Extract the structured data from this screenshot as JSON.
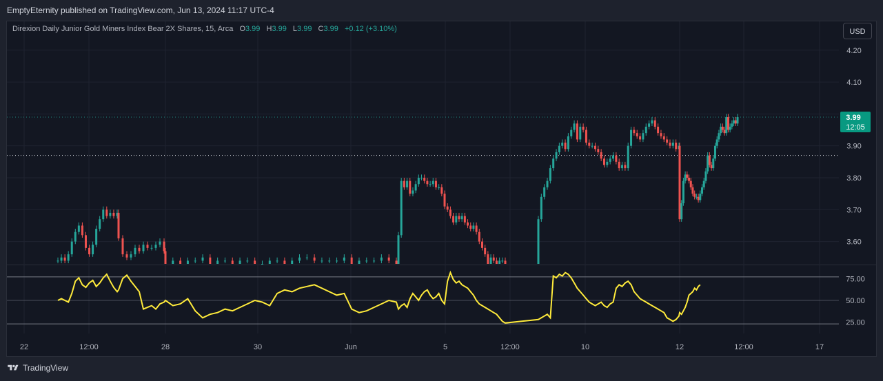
{
  "header": {
    "publisher_line": "EmptyEternity published on TradingView.com, Jun 13, 2024 11:17 UTC-4"
  },
  "legend": {
    "title": "Direxion Daily Junior Gold Miners Index Bear 2X Shares, 15, Arca",
    "open_label": "O",
    "open": "3.99",
    "high_label": "H",
    "high": "3.99",
    "low_label": "L",
    "low": "3.99",
    "close_label": "C",
    "close": "3.99",
    "change": "+0.12 (+3.10%)"
  },
  "currency_button": "USD",
  "price_badge": {
    "price": "3.99",
    "countdown": "12:05"
  },
  "footer": {
    "brand": "TradingView"
  },
  "colors": {
    "up": "#26a69a",
    "down": "#ef5350",
    "rsi": "#ffeb3b",
    "background": "#131722",
    "badge": "#089981"
  },
  "chart_data": [
    {
      "type": "candlestick",
      "title": "Direxion Daily Junior Gold Miners Index Bear 2X Shares, 15, Arca",
      "ylim": [
        3.53,
        4.26
      ],
      "y_ticks": [
        "4.20",
        "4.10",
        "4.00",
        "3.90",
        "3.80",
        "3.70",
        "3.60"
      ],
      "x_ticks": [
        "22",
        "12:00",
        "28",
        "30",
        "Jun",
        "5",
        "12:00",
        "10",
        "12",
        "12:00",
        "17"
      ],
      "last_price": 3.99,
      "reference_level": 3.87,
      "series": [
        {
          "name": "",
          "x": [
            0,
            1,
            2,
            3,
            4,
            5,
            6,
            7,
            8,
            9,
            10,
            11,
            12,
            13,
            14,
            15,
            16,
            17,
            18,
            19,
            20,
            21,
            22,
            23,
            24,
            25,
            26,
            27,
            28,
            29,
            30,
            31,
            32,
            33,
            34,
            35,
            36,
            37,
            38,
            39,
            40,
            41,
            42,
            43,
            44,
            45,
            46,
            47,
            48,
            49,
            50,
            51,
            52,
            53,
            54,
            55,
            56,
            57,
            58,
            59,
            60,
            61,
            62,
            63,
            64,
            65,
            66,
            67,
            68,
            69,
            70,
            71,
            72,
            73,
            74,
            75,
            76,
            77,
            78,
            79,
            80,
            81,
            82,
            83,
            84,
            85,
            86,
            87,
            88,
            89,
            90,
            91,
            92,
            93,
            94,
            95,
            96,
            97,
            98,
            99,
            100,
            101,
            102,
            103,
            104,
            105,
            106,
            107,
            108,
            109,
            110,
            111,
            112,
            113,
            114,
            115,
            116,
            117,
            118,
            119,
            120,
            121,
            122,
            123,
            124,
            125,
            126,
            127,
            128,
            129,
            130,
            131,
            132,
            133,
            134,
            135,
            136,
            137,
            138,
            139,
            140,
            141,
            142,
            143,
            144,
            145,
            146,
            147,
            148,
            149,
            150,
            151,
            152,
            153,
            154,
            155,
            156,
            157,
            158,
            159,
            160,
            161,
            162,
            163,
            164,
            165,
            166,
            167,
            168,
            169,
            170,
            171,
            172,
            173,
            174,
            175,
            176,
            177,
            178,
            179
          ],
          "close": [
            3.54,
            3.55,
            3.54,
            3.56,
            3.6,
            3.63,
            3.65,
            3.62,
            3.58,
            3.56,
            3.59,
            3.64,
            3.67,
            3.7,
            3.68,
            3.69,
            3.68,
            3.69,
            3.61,
            3.56,
            3.55,
            3.56,
            3.58,
            3.57,
            3.59,
            3.58,
            3.58,
            3.59,
            3.6,
            3.57,
            3.53,
            3.54,
            3.53,
            3.54,
            3.54,
            3.55,
            3.53,
            3.54,
            3.54,
            3.53,
            3.54,
            3.54,
            3.53,
            3.53,
            3.54,
            3.54,
            3.53,
            3.54,
            3.55,
            3.55,
            3.54,
            3.54,
            3.54,
            3.54,
            3.55,
            3.53,
            3.54,
            3.54,
            3.54,
            3.55,
            3.54,
            3.53,
            3.62,
            3.79,
            3.77,
            3.79,
            3.75,
            3.76,
            3.78,
            3.8,
            3.8,
            3.79,
            3.78,
            3.78,
            3.79,
            3.77,
            3.77,
            3.75,
            3.71,
            3.7,
            3.68,
            3.66,
            3.68,
            3.67,
            3.68,
            3.66,
            3.65,
            3.64,
            3.65,
            3.63,
            3.6,
            3.58,
            3.56,
            3.53,
            3.55,
            3.54,
            3.53,
            3.54,
            3.54,
            3.53,
            3.67,
            3.74,
            3.77,
            3.79,
            3.83,
            3.86,
            3.88,
            3.9,
            3.91,
            3.89,
            3.93,
            3.95,
            3.97,
            3.92,
            3.96,
            3.95,
            3.91,
            3.9,
            3.9,
            3.89,
            3.88,
            3.86,
            3.84,
            3.85,
            3.86,
            3.87,
            3.85,
            3.83,
            3.84,
            3.83,
            3.9,
            3.95,
            3.94,
            3.93,
            3.92,
            3.94,
            3.96,
            3.97,
            3.98,
            3.96,
            3.94,
            3.93,
            3.92,
            3.91,
            3.9,
            3.91,
            3.89,
            3.9,
            3.67,
            3.72,
            3.79,
            3.81,
            3.8,
            3.79,
            3.77,
            3.75,
            3.74,
            3.74,
            3.73,
            3.75,
            3.77,
            3.79,
            3.82,
            3.87,
            3.84,
            3.83,
            3.86,
            3.9,
            3.92,
            3.94,
            3.96,
            3.95,
            3.94,
            3.99,
            3.95,
            3.96,
            3.97,
            3.98,
            3.97,
            3.99
          ]
        }
      ]
    },
    {
      "type": "line",
      "title": "",
      "ylim": [
        12,
        88
      ],
      "y_ticks": [
        "75.00",
        "50.00",
        "25.00"
      ],
      "bands": [
        77,
        50,
        23
      ],
      "series": [
        {
          "name": "",
          "values": [
            50,
            52,
            50,
            48,
            58,
            72,
            76,
            68,
            65,
            70,
            73,
            66,
            70,
            76,
            80,
            72,
            65,
            60,
            62,
            75,
            79,
            72,
            66,
            60,
            40,
            42,
            44,
            40,
            46,
            48,
            50,
            44,
            46,
            52,
            38,
            30,
            34,
            36,
            40,
            38,
            42,
            46,
            50,
            48,
            44,
            58,
            62,
            60,
            64,
            66,
            68,
            64,
            60,
            56,
            58,
            40,
            36,
            38,
            42,
            46,
            50,
            48,
            40,
            44,
            46,
            42,
            52,
            58,
            54,
            50,
            56,
            60,
            62,
            56,
            52,
            54,
            58,
            50,
            46,
            72,
            82,
            74,
            70,
            72,
            68,
            66,
            64,
            60,
            56,
            50,
            46,
            44,
            42,
            40,
            38,
            36,
            34,
            30,
            26,
            24,
            28,
            30,
            32,
            34,
            30,
            78,
            76,
            80,
            78,
            82,
            80,
            76,
            70,
            64,
            60,
            56,
            52,
            48,
            46,
            44,
            46,
            48,
            44,
            42,
            46,
            48,
            64,
            68,
            66,
            70,
            72,
            68,
            60,
            56,
            52,
            50,
            48,
            46,
            44,
            42,
            40,
            38,
            36,
            30,
            28,
            26,
            28,
            32,
            36,
            34,
            38,
            42,
            48,
            56,
            58,
            60,
            64,
            62,
            66,
            68
          ]
        }
      ]
    }
  ]
}
